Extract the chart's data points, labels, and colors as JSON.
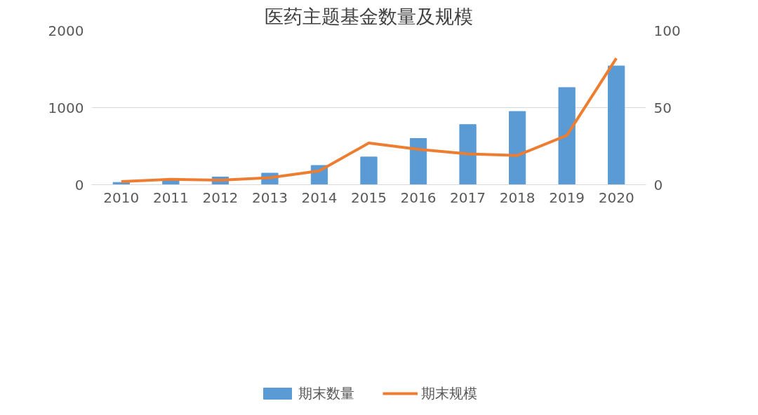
{
  "chart_data": {
    "type": "bar",
    "title": "医药主题基金数量及规模",
    "categories": [
      "2010",
      "2011",
      "2012",
      "2013",
      "2014",
      "2015",
      "2016",
      "2017",
      "2018",
      "2019",
      "2020"
    ],
    "series": [
      {
        "name": "期末数量",
        "color": "#5b9bd5",
        "values": [
          30,
          60,
          100,
          150,
          250,
          360,
          600,
          780,
          950,
          1260,
          1540
        ]
      },
      {
        "name": "期末规模",
        "type": "line",
        "axis": "y2",
        "color": "#ed7d31",
        "values": [
          2,
          3.5,
          3,
          4.5,
          9,
          27,
          23,
          20,
          19,
          32,
          82
        ]
      }
    ],
    "ylim": [
      0,
      2000
    ],
    "yticks": [
      0,
      1000,
      2000
    ],
    "y2lim": [
      0,
      100
    ],
    "y2ticks": [
      0,
      50,
      100
    ],
    "grid": "y",
    "legend": "bottom",
    "marker": "none",
    "line_style": "solid"
  }
}
